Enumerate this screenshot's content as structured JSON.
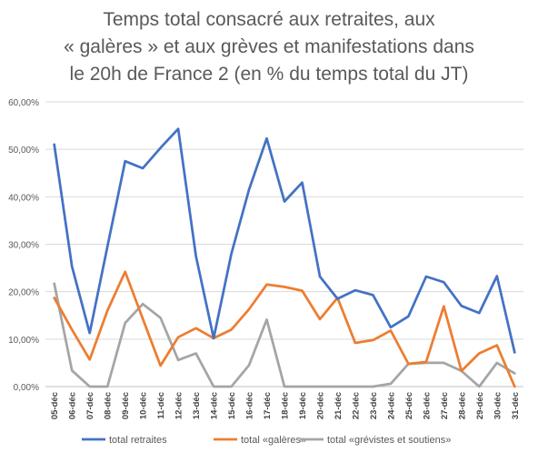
{
  "chart_data": {
    "type": "line",
    "title_lines": [
      "Temps total consacré aux retraites, aux",
      "« galères » et aux grèves et manifestations dans",
      "le 20h de France 2 (en % du temps total du JT)"
    ],
    "xlabel": "",
    "ylabel": "",
    "ylim": [
      0,
      60
    ],
    "y_ticks": [
      "0,00%",
      "10,00%",
      "20,00%",
      "30,00%",
      "40,00%",
      "50,00%",
      "60,00%"
    ],
    "grid": true,
    "legend_position": "bottom",
    "categories": [
      "05-déc",
      "06-déc",
      "07-déc",
      "08-déc",
      "09-déc",
      "10-déc",
      "11-déc",
      "12-déc",
      "13-déc",
      "14-déc",
      "15-déc",
      "16-déc",
      "17-déc",
      "18-déc",
      "19-déc",
      "20-déc",
      "21-déc",
      "22-déc",
      "23-déc",
      "24-déc",
      "25-déc",
      "26-déc",
      "27-déc",
      "28-déc",
      "29-déc",
      "30-déc",
      "31-déc"
    ],
    "series": [
      {
        "name": "total retraites",
        "color": "#4472C4",
        "values": [
          51,
          25.3,
          11.3,
          29.5,
          47.5,
          46,
          50.3,
          54.3,
          27.5,
          10.2,
          28,
          41.5,
          52.3,
          39,
          43,
          23.2,
          18.5,
          20.3,
          19.3,
          12.5,
          14.8,
          23.2,
          22,
          17,
          15.5,
          23.3,
          7.2
        ]
      },
      {
        "name": "total «galères»",
        "color": "#ED7D31",
        "values": [
          18.7,
          12,
          5.7,
          16,
          24.2,
          14.3,
          4.4,
          10.4,
          12.3,
          10.2,
          12,
          16.3,
          21.5,
          21,
          20.2,
          14.2,
          18.7,
          9.2,
          9.8,
          11.8,
          4.8,
          5.2,
          16.9,
          3.3,
          7,
          8.7,
          0
        ]
      },
      {
        "name": "total «grévistes et soutiens»",
        "color": "#A5A5A5",
        "values": [
          21.7,
          3.4,
          0,
          0,
          13.4,
          17.4,
          14.5,
          5.6,
          7,
          0,
          0,
          4.5,
          14.1,
          0,
          0,
          0,
          0,
          0,
          0,
          0.6,
          4.8,
          5,
          5,
          3.3,
          0,
          5,
          2.8
        ]
      }
    ]
  }
}
